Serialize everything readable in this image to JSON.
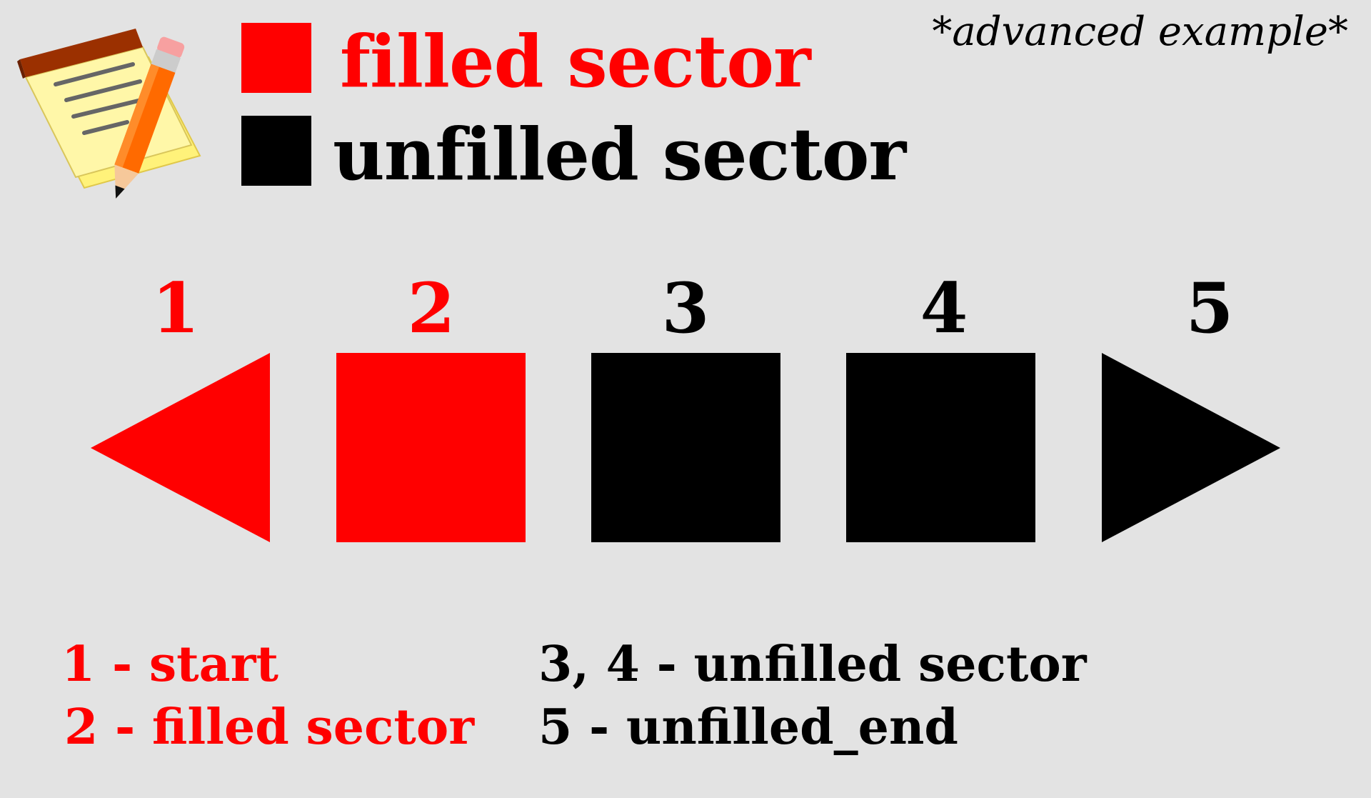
{
  "note": "*advanced example*",
  "legend": [
    {
      "label": "filled sector",
      "color": "#ff0000"
    },
    {
      "label": "unfilled sector",
      "color": "#000000"
    }
  ],
  "sectors": [
    {
      "number": "1",
      "shape": "triangle-left",
      "state": "filled",
      "color": "#ff0000"
    },
    {
      "number": "2",
      "shape": "square",
      "state": "filled",
      "color": "#ff0000"
    },
    {
      "number": "3",
      "shape": "square",
      "state": "unfilled",
      "color": "#000000"
    },
    {
      "number": "4",
      "shape": "square",
      "state": "unfilled",
      "color": "#000000"
    },
    {
      "number": "5",
      "shape": "triangle-right",
      "state": "unfilled",
      "color": "#000000"
    }
  ],
  "captions": {
    "start": "1 - start",
    "filled": "2 - filled sector",
    "unfilled": "3, 4 - unfilled sector",
    "end": "5 - unfilled_end"
  },
  "icon": "notepad-pencil-icon"
}
